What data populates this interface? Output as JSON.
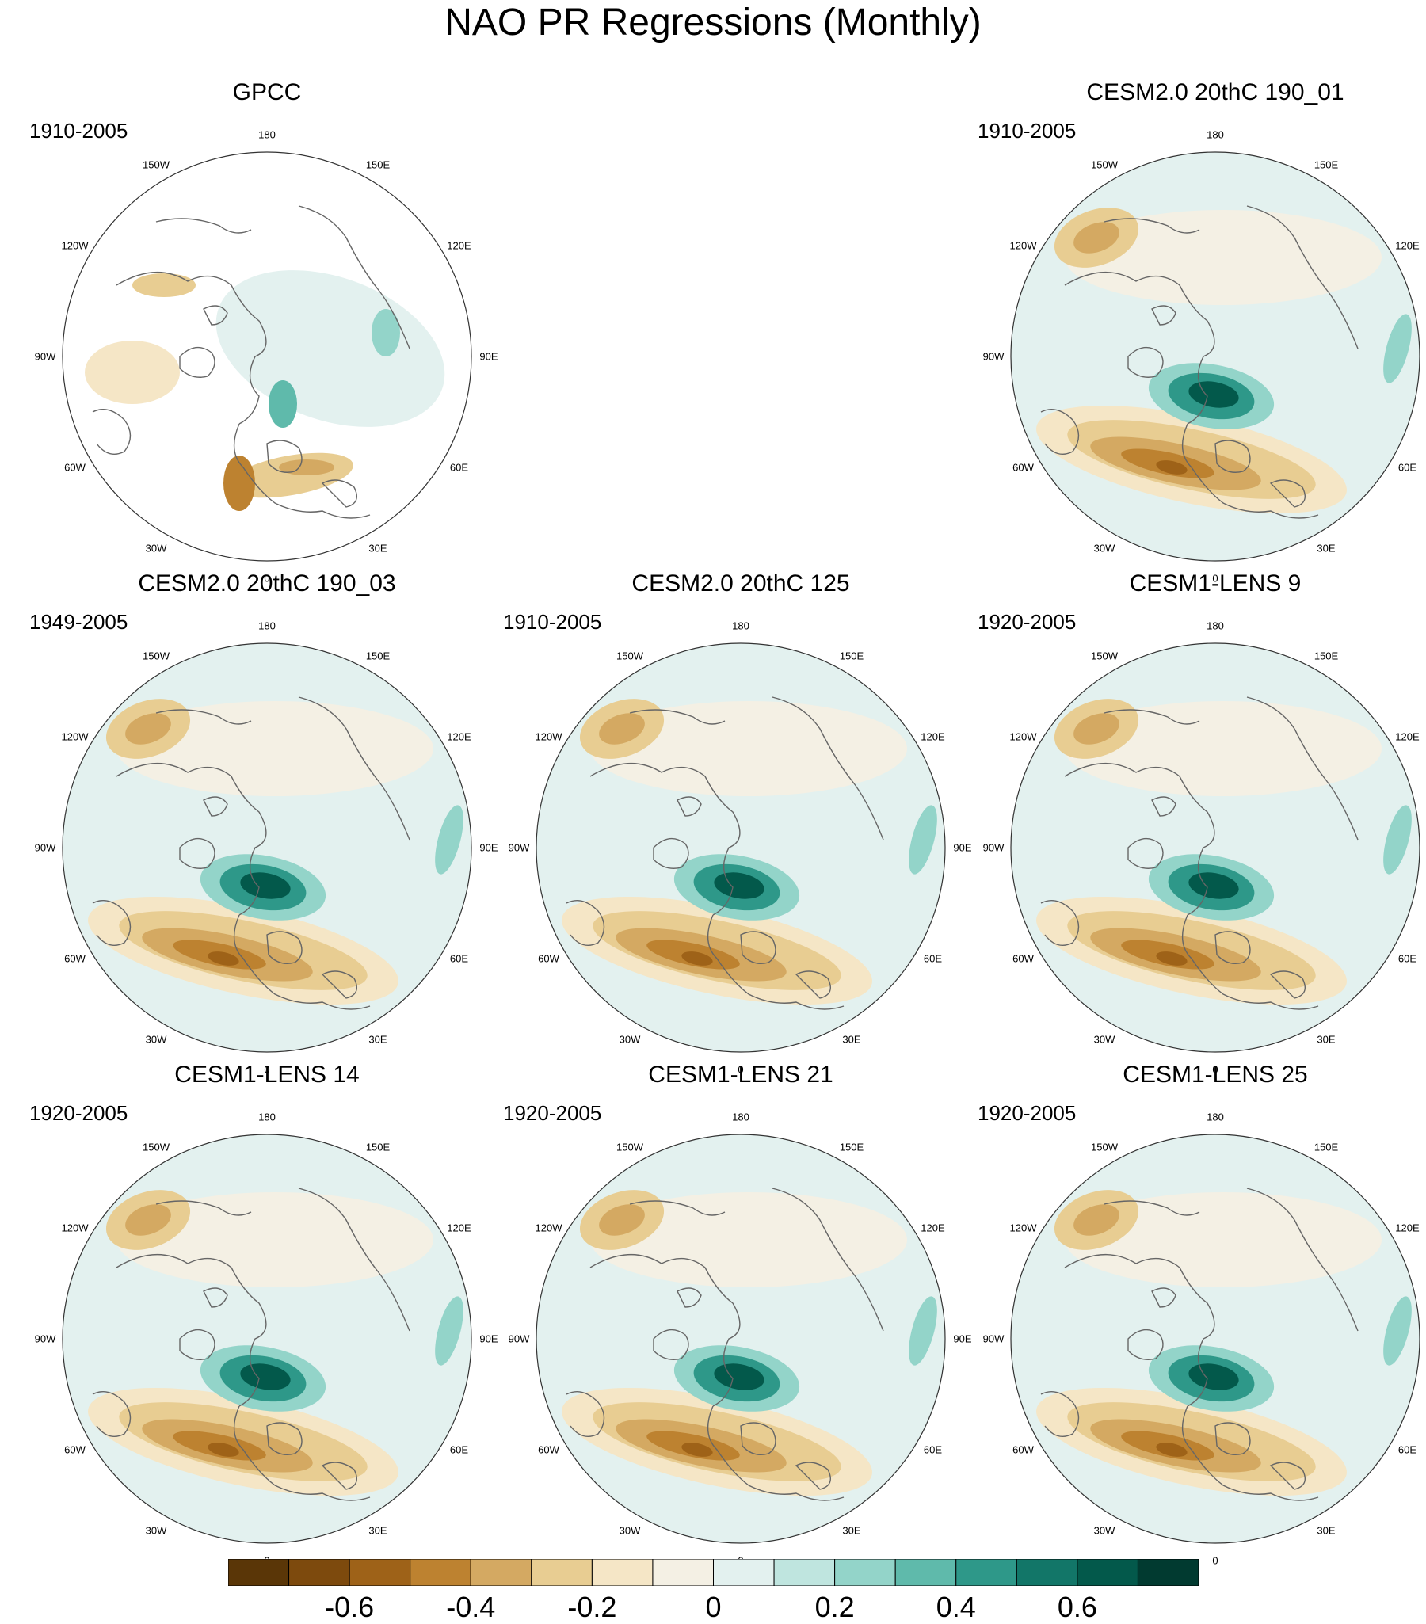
{
  "title": "NAO PR Regressions (Monthly)",
  "longitude_labels": [
    "180",
    "150E",
    "120E",
    "90E",
    "60E",
    "30E",
    "0",
    "30W",
    "60W",
    "90W",
    "120W",
    "150W"
  ],
  "panels": [
    {
      "id": "gpcc",
      "title": "GPCC",
      "years": "1910-2005",
      "kind": "obs",
      "col": 0,
      "row": 0
    },
    {
      "id": "cesm2-190-01",
      "title": "CESM2.0 20thC 190_01",
      "years": "1910-2005",
      "kind": "model",
      "col": 2,
      "row": 0
    },
    {
      "id": "cesm2-190-03",
      "title": "CESM2.0 20thC 190_03",
      "years": "1949-2005",
      "kind": "model",
      "col": 0,
      "row": 1
    },
    {
      "id": "cesm2-125",
      "title": "CESM2.0 20thC 125",
      "years": "1910-2005",
      "kind": "model",
      "col": 1,
      "row": 1
    },
    {
      "id": "lens-9",
      "title": "CESM1-LENS 9",
      "years": "1920-2005",
      "kind": "model",
      "col": 2,
      "row": 1
    },
    {
      "id": "lens-14",
      "title": "CESM1-LENS 14",
      "years": "1920-2005",
      "kind": "model",
      "col": 0,
      "row": 2
    },
    {
      "id": "lens-21",
      "title": "CESM1-LENS 21",
      "years": "1920-2005",
      "kind": "model",
      "col": 1,
      "row": 2
    },
    {
      "id": "lens-25",
      "title": "CESM1-LENS 25",
      "years": "1920-2005",
      "kind": "model",
      "col": 2,
      "row": 2
    }
  ],
  "colorbar": {
    "colors": [
      "#5a3607",
      "#7d4a0d",
      "#9e6218",
      "#bd8230",
      "#d4a962",
      "#e8cd92",
      "#f5e6c6",
      "#f4f0e4",
      "#e3f1ef",
      "#bfe5df",
      "#93d4c9",
      "#5fbaab",
      "#2e9889",
      "#127668",
      "#03594b",
      "#013a30"
    ],
    "labels": [
      "-0.6",
      "-0.4",
      "-0.2",
      "0",
      "0.2",
      "0.4",
      "0.6"
    ],
    "label_positions": [
      2,
      4,
      6,
      8,
      10,
      12,
      14
    ]
  }
}
